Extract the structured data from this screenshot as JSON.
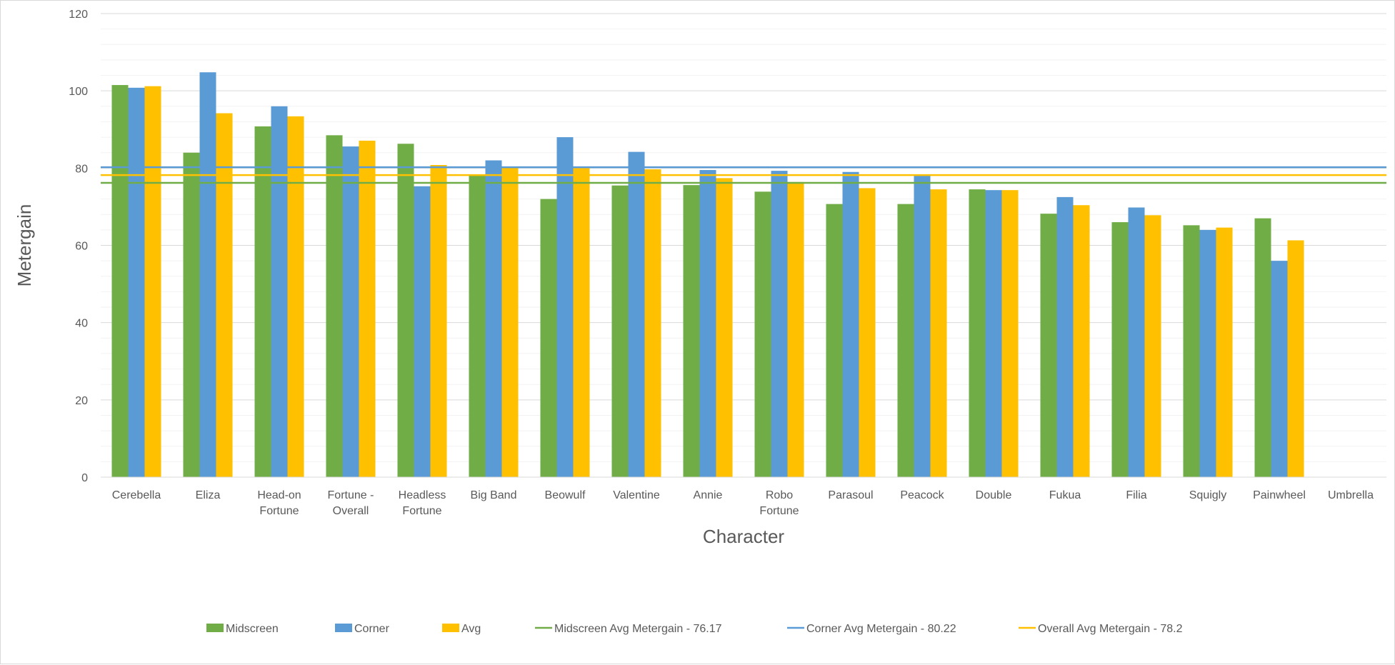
{
  "chart_data": {
    "type": "bar",
    "title": "",
    "xlabel": "Character",
    "ylabel": "Metergain",
    "ylim": [
      0,
      120
    ],
    "yticks": [
      0,
      20,
      40,
      60,
      80,
      100,
      120
    ],
    "grid": true,
    "legend_position": "bottom",
    "categories": [
      [
        "Cerebella"
      ],
      [
        "Eliza"
      ],
      [
        "Head-on",
        "Fortune"
      ],
      [
        "Fortune -",
        "Overall"
      ],
      [
        "Headless",
        "Fortune"
      ],
      [
        "Big Band"
      ],
      [
        "Beowulf"
      ],
      [
        "Valentine"
      ],
      [
        "Annie"
      ],
      [
        "Robo",
        "Fortune"
      ],
      [
        "Parasoul"
      ],
      [
        "Peacock"
      ],
      [
        "Double"
      ],
      [
        "Fukua"
      ],
      [
        "Filia"
      ],
      [
        "Squigly"
      ],
      [
        "Painwheel"
      ],
      [
        "Umbrella"
      ]
    ],
    "series": [
      {
        "name": "Midscreen",
        "color": "#70ad47",
        "values": [
          101.5,
          84,
          90.8,
          88.5,
          86.3,
          78.2,
          72,
          75.5,
          75.6,
          73.9,
          70.7,
          70.7,
          74.5,
          68.2,
          66,
          65.2,
          67,
          null
        ]
      },
      {
        "name": "Corner",
        "color": "#5b9bd5",
        "values": [
          100.8,
          104.8,
          96,
          85.6,
          75.3,
          82,
          88,
          84.2,
          79.5,
          79.3,
          79,
          78.2,
          74.3,
          72.5,
          69.8,
          64,
          56,
          null
        ]
      },
      {
        "name": "Avg",
        "color": "#ffc000",
        "values": [
          101.2,
          94.2,
          93.4,
          87.1,
          80.8,
          80.1,
          80,
          79.7,
          77.4,
          76.4,
          74.8,
          74.5,
          74.3,
          70.4,
          67.8,
          64.6,
          61.3,
          null
        ]
      }
    ],
    "reference_lines": [
      {
        "name": "Midscreen Avg Metergain - 76.17",
        "value": 76.17,
        "color": "#70ad47"
      },
      {
        "name": "Corner Avg Metergain - 80.22",
        "value": 80.22,
        "color": "#5b9bd5"
      },
      {
        "name": "Overall Avg Metergain - 78.2",
        "value": 78.2,
        "color": "#ffc000"
      }
    ]
  }
}
